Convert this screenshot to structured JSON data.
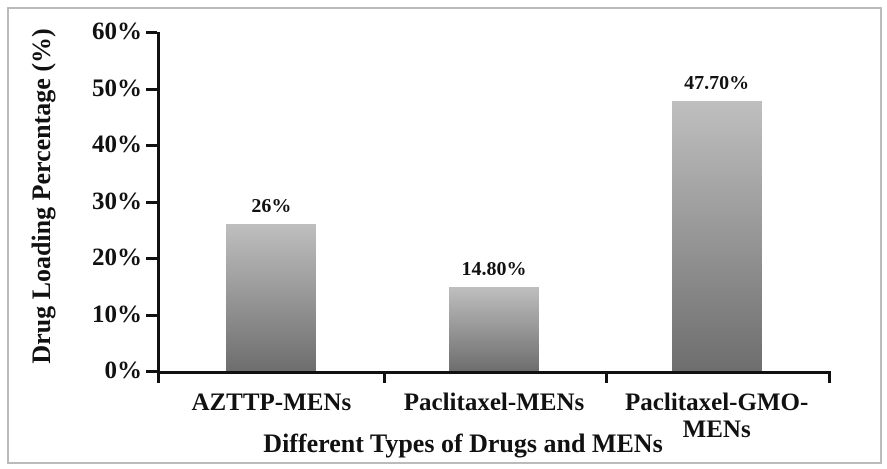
{
  "chart_data": {
    "type": "bar",
    "title": "",
    "xlabel": "Different Types of Drugs and MENs",
    "ylabel": "Drug Loading Percentage (%)",
    "categories": [
      "AZTTP-MENs",
      "Paclitaxel-MENs",
      "Paclitaxel-GMO-MENs"
    ],
    "values": [
      26,
      14.8,
      47.7
    ],
    "value_labels": [
      "26%",
      "14.80%",
      "47.70%"
    ],
    "ytick_labels": [
      "60%",
      "50%",
      "40%",
      "30%",
      "20%",
      "10%",
      "0%"
    ],
    "ytick_values": [
      60,
      50,
      40,
      30,
      20,
      10,
      0
    ],
    "ylim": [
      0,
      60
    ],
    "grid": false,
    "legend": false,
    "bar_gradient_top": "#bfbfbf",
    "bar_gradient_bottom": "#6e6e6e",
    "axis_color": "#111111",
    "text_color": "#111111",
    "frame_border_color": "#bbbbbb",
    "background_color": "#ffffff"
  }
}
